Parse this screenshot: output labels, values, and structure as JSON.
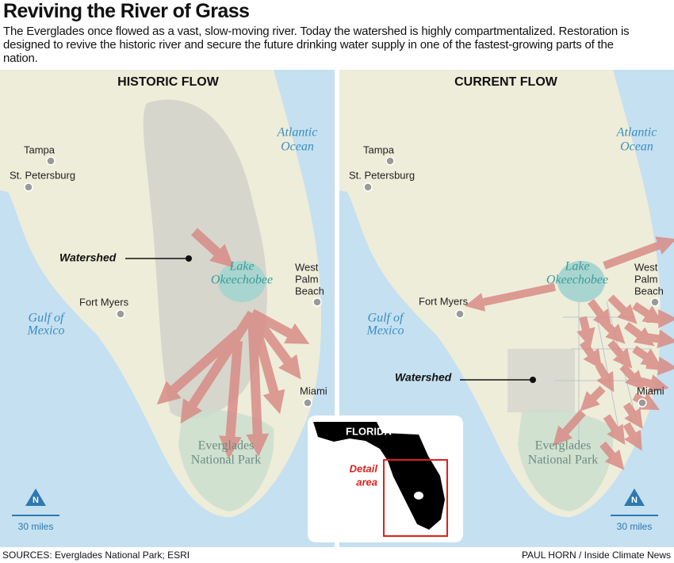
{
  "header": {
    "title": "Reviving the River of Grass",
    "description": "The Everglades once flowed as a vast, slow-moving river. Today the watershed is highly compartmentalized. Restoration is designed to revive the historic river and secure the future drinking water supply in one of the fastest-growing parts of the nation."
  },
  "maps": [
    {
      "heading": "HISTORIC FLOW",
      "labels": {
        "tampa": "Tampa",
        "st_petersburg": "St. Petersburg",
        "atlantic": [
          "Atlantic",
          "Ocean"
        ],
        "watershed": "Watershed",
        "lake": [
          "Lake",
          "Okeechobee"
        ],
        "west_palm_beach": [
          "West",
          "Palm",
          "Beach"
        ],
        "fort_myers": "Fort Myers",
        "gulf": [
          "Gulf of",
          "Mexico"
        ],
        "miami": "Miami",
        "park": [
          "Everglades",
          "National Park"
        ]
      },
      "scale": "30 miles"
    },
    {
      "heading": "CURRENT FLOW",
      "labels": {
        "tampa": "Tampa",
        "st_petersburg": "St. Petersburg",
        "atlantic": [
          "Atlantic",
          "Ocean"
        ],
        "watershed": "Watershed",
        "lake": [
          "Lake",
          "Okeechobee"
        ],
        "west_palm_beach": [
          "West",
          "Palm",
          "Beach"
        ],
        "fort_myers": "Fort Myers",
        "gulf": [
          "Gulf of",
          "Mexico"
        ],
        "miami": "Miami",
        "park": [
          "Everglades",
          "National Park"
        ]
      },
      "scale": "30 miles"
    }
  ],
  "inset": {
    "label": "FLORIDA",
    "detail": [
      "Detail",
      "area"
    ]
  },
  "footer": {
    "sources": "SOURCES: Everglades National Park; ESRI",
    "credit": "PAUL HORN / Inside Climate News"
  }
}
